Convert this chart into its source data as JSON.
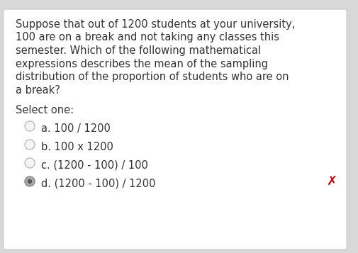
{
  "outer_background": "#d8d8d8",
  "panel_bg": "#ffffff",
  "panel_edge": "#cccccc",
  "question_text_lines": [
    "Suppose that out of 1200 students at your university,",
    "100 are on a break and not taking any classes this",
    "semester. Which of the following mathematical",
    "expressions describes the mean of the sampling",
    "distribution of the proportion of students who are on",
    "a break?"
  ],
  "select_label": "Select one:",
  "options": [
    {
      "label": "a. 100 / 1200",
      "selected": false
    },
    {
      "label": "b. 100 x 1200",
      "selected": false
    },
    {
      "label": "c. (1200 - 100) / 100",
      "selected": false
    },
    {
      "label": "d. (1200 - 100) / 1200",
      "selected": true
    }
  ],
  "wrong_answer_index": 3,
  "wrong_color": "#cc0000",
  "text_fontsize": 10.5,
  "text_color": "#333333",
  "circle_fill_unselected": "#f5f5f5",
  "circle_edge_unselected": "#bbbbbb",
  "circle_fill_selected": "#aaaaaa",
  "circle_edge_selected": "#888888"
}
